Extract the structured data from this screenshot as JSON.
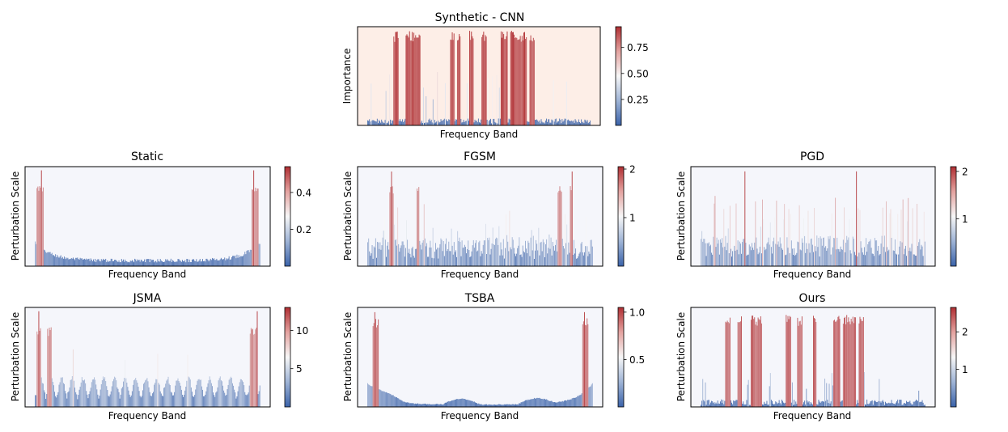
{
  "colors": {
    "low": "#3b63aa",
    "mid": "#f7f7f7",
    "high": "#b02f33",
    "top_panel_bg": "#fdeee7",
    "panel_bg": "#f5f6fb"
  },
  "chart_data": [
    {
      "id": "synthetic-cnn",
      "type": "bar",
      "title": "Synthetic - CNN",
      "xlabel": "Frequency Band",
      "ylabel": "Importance",
      "n_bands": 256,
      "ylim": [
        0,
        1.0
      ],
      "colorbar": {
        "vmin": 0.0,
        "vmax": 0.95,
        "ticks": [
          0.25,
          0.5,
          0.75
        ],
        "tick_labels": [
          "0.25",
          "0.50",
          "0.75"
        ]
      },
      "profile": {
        "base": 0.02,
        "noise": 0.05,
        "spikes": 0.12,
        "spike_level": 0.55
      },
      "high_blocks": [
        [
          30,
          35
        ],
        [
          44,
          60
        ],
        [
          95,
          99
        ],
        [
          103,
          106
        ],
        [
          117,
          121
        ],
        [
          131,
          136
        ],
        [
          153,
          160
        ],
        [
          164,
          182
        ],
        [
          186,
          191
        ]
      ],
      "high_value": 0.96
    },
    {
      "id": "static",
      "type": "bar",
      "title": "Static",
      "xlabel": "Frequency Band",
      "ylabel": "Perturbation Scale",
      "n_bands": 256,
      "ylim": [
        0,
        0.54
      ],
      "colorbar": {
        "vmin": 0.0,
        "vmax": 0.54,
        "ticks": [
          0.2,
          0.4
        ],
        "tick_labels": [
          "0.2",
          "0.4"
        ]
      },
      "profile": {
        "edge_u": true,
        "base": 0.02,
        "edge_amp": 0.1,
        "noise": 0.02,
        "spikes": 0.0,
        "spike_level": 0.0
      },
      "high_blocks": [
        [
          2,
          9
        ],
        [
          246,
          253
        ]
      ],
      "high_value": 0.46,
      "peaks": [
        [
          7,
          0.52
        ],
        [
          248,
          0.52
        ]
      ]
    },
    {
      "id": "fgsm",
      "type": "bar",
      "title": "FGSM",
      "xlabel": "Frequency Band",
      "ylabel": "Perturbation Scale",
      "n_bands": 256,
      "ylim": [
        0,
        2.05
      ],
      "colorbar": {
        "vmin": 0.0,
        "vmax": 2.05,
        "ticks": [
          1,
          2
        ],
        "tick_labels": [
          "1",
          "2"
        ]
      },
      "profile": {
        "base": 0.15,
        "noise": 0.45,
        "spikes": 0.12,
        "spike_level": 0.75
      },
      "high_blocks": [
        [
          25,
          29
        ],
        [
          56,
          58
        ],
        [
          216,
          220
        ],
        [
          230,
          232
        ]
      ],
      "high_value": 1.7,
      "peaks": [
        [
          27,
          1.95
        ],
        [
          232,
          1.95
        ]
      ]
    },
    {
      "id": "pgd",
      "type": "bar",
      "title": "PGD",
      "xlabel": "Frequency Band",
      "ylabel": "Perturbation Scale",
      "n_bands": 256,
      "ylim": [
        0,
        2.1
      ],
      "colorbar": {
        "vmin": 0.0,
        "vmax": 2.1,
        "ticks": [
          1,
          2
        ],
        "tick_labels": [
          "1",
          "2"
        ]
      },
      "profile": {
        "base": 0.2,
        "noise": 0.45,
        "spikes": 0.18,
        "spike_level": 1.05
      },
      "high_blocks": [],
      "high_value": 1.6,
      "peaks": [
        [
          50,
          2.0
        ],
        [
          177,
          2.0
        ]
      ]
    },
    {
      "id": "jsma",
      "type": "bar",
      "title": "JSMA",
      "xlabel": "Frequency Band",
      "ylabel": "Perturbation Scale",
      "n_bands": 256,
      "ylim": [
        0,
        13
      ],
      "colorbar": {
        "vmin": 0.0,
        "vmax": 13.0,
        "ticks": [
          5,
          10
        ],
        "tick_labels": [
          "5",
          "10"
        ]
      },
      "profile": {
        "wave": true,
        "base": 1.0,
        "wave_amp": 2.5,
        "noise": 0.6,
        "spikes": 0.03,
        "spike_level": 5.0
      },
      "high_blocks": [
        [
          2,
          6
        ],
        [
          14,
          18
        ],
        [
          244,
          252
        ]
      ],
      "high_value": 10.5,
      "peaks": [
        [
          4,
          12.5
        ],
        [
          252,
          12.5
        ]
      ]
    },
    {
      "id": "tsba",
      "type": "bar",
      "title": "TSBA",
      "xlabel": "Frequency Band",
      "ylabel": "Perturbation Scale",
      "n_bands": 256,
      "ylim": [
        0,
        1.05
      ],
      "colorbar": {
        "vmin": 0.0,
        "vmax": 1.05,
        "ticks": [
          0.5,
          1.0
        ],
        "tick_labels": [
          "0.5",
          "1.0"
        ]
      },
      "profile": {
        "smooth": true,
        "edge_u": true,
        "base": 0.02,
        "edge_amp": 0.22,
        "noise": 0.01,
        "spikes": 0.0,
        "spike_level": 0.0
      },
      "high_blocks": [
        [
          6,
          12
        ],
        [
          244,
          250
        ]
      ],
      "high_value": 0.95,
      "peaks": [
        [
          8,
          1.0
        ],
        [
          246,
          1.0
        ]
      ]
    },
    {
      "id": "ours",
      "type": "bar",
      "title": "Ours",
      "xlabel": "Frequency Band",
      "ylabel": "Perturbation Scale",
      "n_bands": 256,
      "ylim": [
        0,
        2.65
      ],
      "colorbar": {
        "vmin": 0.0,
        "vmax": 2.65,
        "ticks": [
          1,
          2
        ],
        "tick_labels": [
          "1",
          "2"
        ]
      },
      "profile": {
        "base": 0.05,
        "noise": 0.15,
        "spikes": 0.12,
        "spike_level": 0.8
      },
      "high_blocks": [
        [
          28,
          33
        ],
        [
          42,
          46
        ],
        [
          57,
          69
        ],
        [
          97,
          102
        ],
        [
          110,
          115
        ],
        [
          128,
          131
        ],
        [
          151,
          158
        ],
        [
          162,
          176
        ],
        [
          180,
          185
        ]
      ],
      "high_value": 2.45
    }
  ]
}
